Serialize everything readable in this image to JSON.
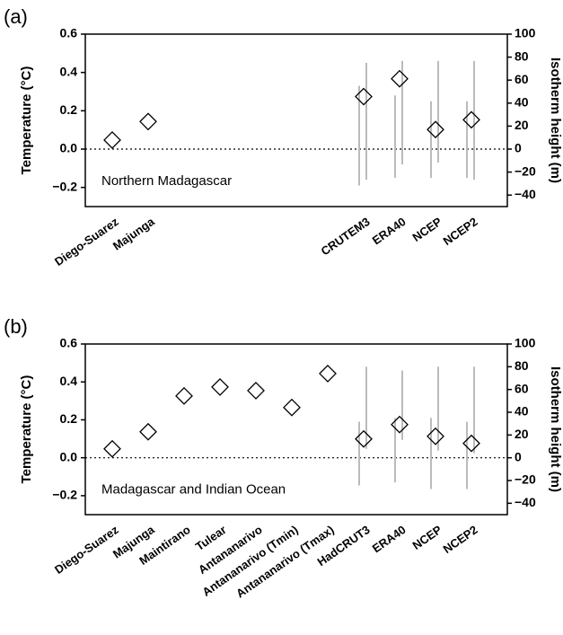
{
  "chart_data": [
    {
      "type": "scatter",
      "panel_label": "(a)",
      "annotation": "Northern Madagascar",
      "ylabel": "Temperature (°C)",
      "y2label": "Isotherm height (m)",
      "categories": [
        "Diego-Suarez",
        "Majunga",
        null,
        null,
        null,
        null,
        null,
        "CRUTEM3",
        "ERA40",
        "NCEP",
        "NCEP2"
      ],
      "values": [
        0.047,
        0.144,
        null,
        null,
        null,
        null,
        null,
        0.274,
        0.367,
        0.102,
        0.153
      ],
      "ranges": [
        {
          "low": [
            null,
            null,
            null,
            null,
            null,
            null,
            null,
            -0.19,
            -0.15,
            -0.15,
            -0.15
          ],
          "high": [
            null,
            null,
            null,
            null,
            null,
            null,
            null,
            0.33,
            0.28,
            0.25,
            0.25
          ]
        },
        {
          "low": [
            null,
            null,
            null,
            null,
            null,
            null,
            null,
            -0.16,
            -0.08,
            -0.07,
            -0.16
          ],
          "high": [
            null,
            null,
            null,
            null,
            null,
            null,
            null,
            0.45,
            0.46,
            0.46,
            0.46
          ]
        }
      ],
      "ylim": [
        -0.3,
        0.6
      ],
      "yticks": [
        {
          "value": -0.2,
          "label": "−0.2"
        },
        {
          "value": 0,
          "label": "0.0"
        },
        0.2,
        0.4,
        0.6
      ],
      "y2lim": [
        -50,
        100
      ],
      "y2ticks": [
        {
          "value": -40,
          "label": "−40"
        },
        {
          "value": -20,
          "label": "−20"
        },
        0,
        20,
        40,
        60,
        80,
        100
      ]
    },
    {
      "type": "scatter",
      "panel_label": "(b)",
      "annotation": "Madagascar and Indian Ocean",
      "ylabel": "Temperature (°C)",
      "y2label": "Isotherm height (m)",
      "categories": [
        "Diego-Suarez",
        "Majunga",
        "Maintirano",
        "Tulear",
        "Antananarivo",
        "Antananarivo (Tmin)",
        "Antananarivo (Tmax)",
        "HadCRUT3",
        "ERA40",
        "NCEP",
        "NCEP2"
      ],
      "values": [
        0.047,
        0.137,
        0.326,
        0.373,
        0.354,
        0.265,
        0.444,
        0.099,
        0.175,
        0.113,
        0.076
      ],
      "ranges": [
        {
          "low": [
            null,
            null,
            null,
            null,
            null,
            null,
            null,
            -0.146,
            -0.13,
            -0.165,
            -0.165
          ],
          "high": [
            null,
            null,
            null,
            null,
            null,
            null,
            null,
            0.19,
            0.21,
            0.21,
            0.19
          ]
        },
        {
          "low": [
            null,
            null,
            null,
            null,
            null,
            null,
            null,
            0.047,
            0.094,
            0.038,
            0.024
          ],
          "high": [
            null,
            null,
            null,
            null,
            null,
            null,
            null,
            0.48,
            0.46,
            0.48,
            0.48
          ]
        }
      ],
      "ylim": [
        -0.3,
        0.6
      ],
      "yticks": [
        {
          "value": -0.2,
          "label": "−0.2"
        },
        {
          "value": 0,
          "label": "0.0"
        },
        0.2,
        0.4,
        0.6
      ],
      "y2lim": [
        -50,
        100
      ],
      "y2ticks": [
        {
          "value": -40,
          "label": "−40"
        },
        {
          "value": -20,
          "label": "−20"
        },
        0,
        20,
        40,
        60,
        80,
        100
      ]
    }
  ]
}
